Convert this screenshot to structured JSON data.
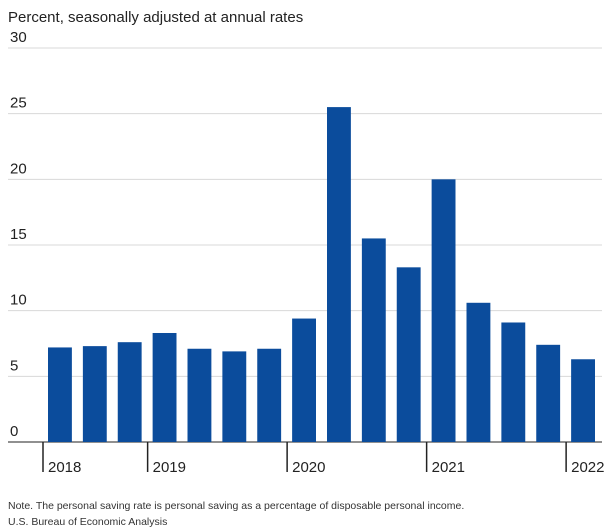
{
  "chart_data": {
    "type": "bar",
    "subtitle": "Percent, seasonally adjusted at annual rates",
    "categories": [
      "2018",
      null,
      null,
      "2019",
      null,
      null,
      null,
      "2020",
      null,
      null,
      null,
      "2021",
      null,
      null,
      null,
      "2022"
    ],
    "values": [
      7.2,
      7.3,
      7.6,
      8.3,
      7.1,
      6.9,
      7.1,
      9.4,
      25.5,
      15.5,
      13.3,
      20.0,
      10.6,
      9.1,
      7.4,
      6.3
    ],
    "color": "#0b4c9c",
    "ylim": [
      0,
      30
    ],
    "yticks": [
      0,
      5,
      10,
      15,
      20,
      25,
      30
    ],
    "grid": true,
    "note": "Note. The personal saving rate is personal saving as a percentage of disposable personal income.",
    "source": "U.S. Bureau of Economic Analysis"
  }
}
